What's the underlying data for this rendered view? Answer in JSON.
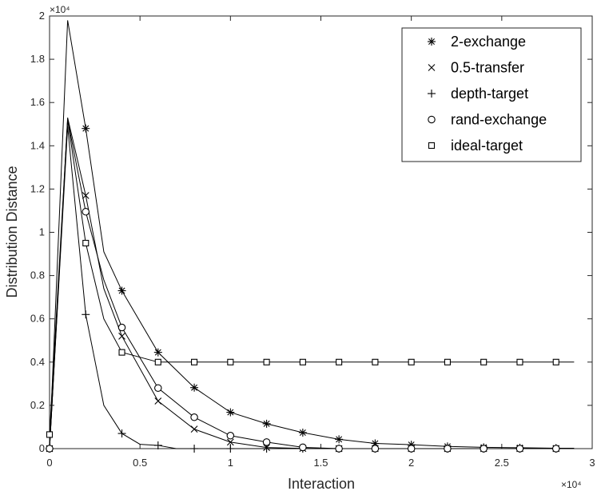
{
  "chart_data": {
    "type": "line",
    "xlabel": "Interaction",
    "ylabel": "Distribution Distance",
    "x_exponent_label": "×10⁴",
    "y_exponent_label": "×10⁴",
    "xlim": [
      0,
      30000
    ],
    "ylim": [
      0,
      20000
    ],
    "xticks": [
      0,
      5000,
      10000,
      15000,
      20000,
      25000,
      30000
    ],
    "xtick_labels": [
      "0",
      "0.5",
      "1",
      "1.5",
      "2",
      "2.5",
      "3"
    ],
    "yticks": [
      0,
      2000,
      4000,
      6000,
      8000,
      10000,
      12000,
      14000,
      16000,
      18000,
      20000
    ],
    "ytick_labels": [
      "0",
      "0.2",
      "0.4",
      "0.6",
      "0.8",
      "1",
      "1.2",
      "1.4",
      "1.6",
      "1.8",
      "2"
    ],
    "grid": false,
    "legend_position": "top-right",
    "series": [
      {
        "name": "2-exchange",
        "marker": "asterisk",
        "x": [
          0,
          1000,
          2000,
          3000,
          4000,
          6000,
          8000,
          10000,
          12000,
          14000,
          16000,
          18000,
          20000,
          22000,
          24000,
          26000,
          28000,
          29000
        ],
        "y": [
          0,
          19800,
          14800,
          9100,
          7300,
          4450,
          2820,
          1680,
          1150,
          740,
          430,
          240,
          180,
          100,
          60,
          40,
          20,
          20
        ],
        "marker_indices": [
          0,
          2,
          4,
          5,
          6,
          7,
          8,
          9,
          10,
          11,
          12,
          13,
          14,
          15,
          16
        ]
      },
      {
        "name": "0.5-transfer",
        "marker": "cross",
        "x": [
          0,
          1000,
          2000,
          3000,
          4000,
          6000,
          8000,
          10000,
          12000,
          14000,
          16000,
          18000,
          20000,
          22000,
          24000,
          26000,
          28000,
          29000
        ],
        "y": [
          0,
          15300,
          11700,
          7400,
          5200,
          2200,
          900,
          300,
          50,
          10,
          0,
          0,
          0,
          0,
          0,
          0,
          0,
          0
        ],
        "marker_indices": [
          0,
          2,
          4,
          5,
          6,
          7,
          8,
          9,
          10,
          11,
          12,
          13,
          14,
          15,
          16
        ]
      },
      {
        "name": "depth-target",
        "marker": "plus",
        "x": [
          0,
          1000,
          2000,
          3000,
          4000,
          5000,
          6000,
          7000,
          8000,
          10000,
          12000,
          14000,
          16000,
          18000,
          20000,
          22000,
          24000,
          26000,
          28000,
          29000
        ],
        "y": [
          0,
          14900,
          6200,
          2000,
          700,
          200,
          150,
          0,
          0,
          0,
          0,
          0,
          0,
          0,
          0,
          0,
          0,
          0,
          0,
          0
        ],
        "marker_indices": [
          0,
          2,
          4,
          6,
          8,
          9,
          10,
          11,
          12,
          13,
          14,
          15,
          16,
          17,
          18
        ]
      },
      {
        "name": "rand-exchange",
        "marker": "circle",
        "x": [
          0,
          1000,
          2000,
          3000,
          4000,
          6000,
          8000,
          10000,
          12000,
          14000,
          16000,
          18000,
          20000,
          22000,
          24000,
          26000,
          28000,
          29000
        ],
        "y": [
          0,
          15200,
          10950,
          7800,
          5600,
          2800,
          1450,
          600,
          300,
          60,
          0,
          0,
          0,
          0,
          0,
          0,
          0,
          0
        ],
        "marker_indices": [
          0,
          2,
          4,
          5,
          6,
          7,
          8,
          9,
          10,
          11,
          12,
          13,
          14,
          15,
          16
        ]
      },
      {
        "name": "ideal-target",
        "marker": "square",
        "x": [
          0,
          1000,
          2000,
          3000,
          4000,
          6000,
          8000,
          10000,
          12000,
          14000,
          16000,
          18000,
          20000,
          22000,
          24000,
          26000,
          28000,
          29000
        ],
        "y": [
          650,
          15200,
          9500,
          6000,
          4450,
          4000,
          4000,
          4000,
          4000,
          4000,
          4000,
          4000,
          4000,
          4000,
          4000,
          4000,
          4000,
          4000
        ],
        "marker_indices": [
          0,
          2,
          4,
          5,
          6,
          7,
          8,
          9,
          10,
          11,
          12,
          13,
          14,
          15,
          16
        ]
      }
    ]
  }
}
